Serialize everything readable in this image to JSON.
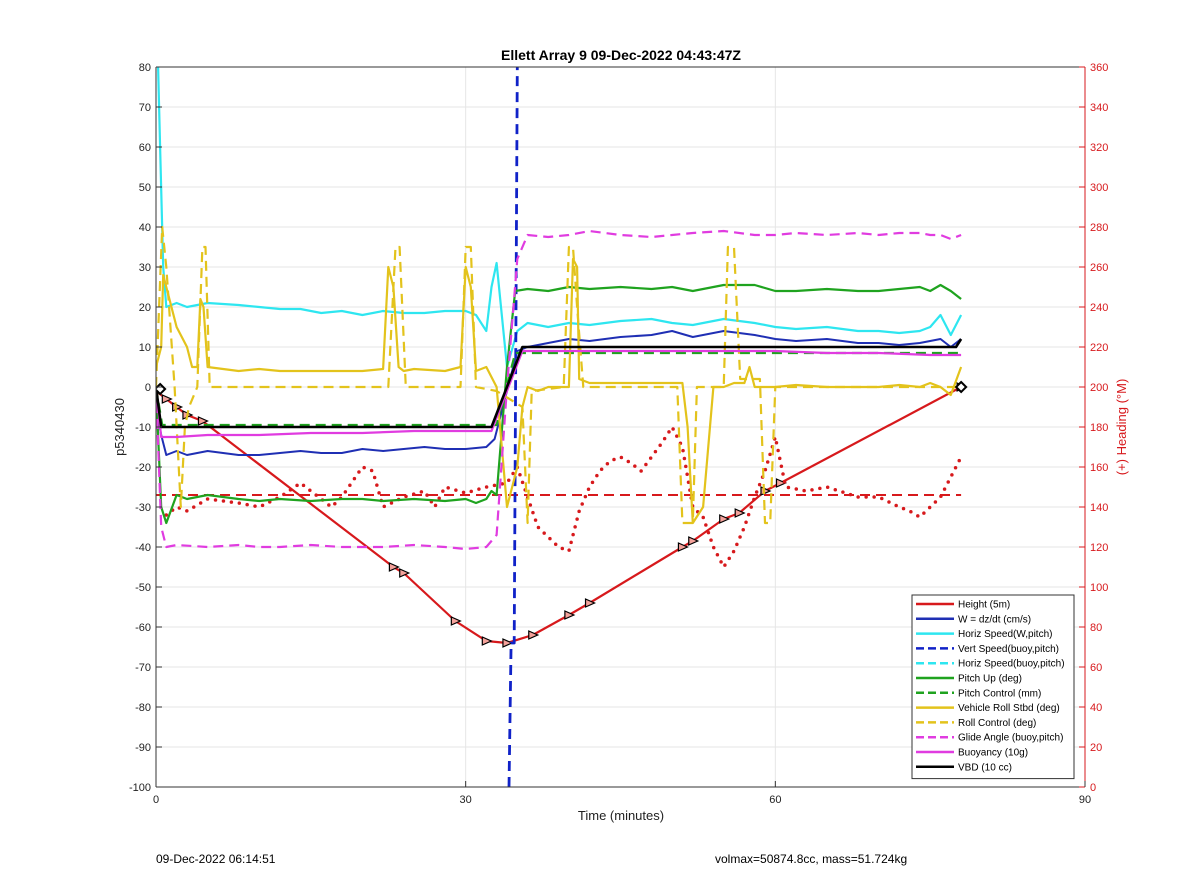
{
  "chart_data": {
    "type": "line",
    "title": "Ellett Array 9 09-Dec-2022 04:43:47Z",
    "xlabel": "Time (minutes)",
    "ylabel": "p5340430",
    "y2label": "(+) Heading (°M)",
    "xlim": [
      0,
      90
    ],
    "ylim": [
      -100,
      80
    ],
    "y2lim": [
      0,
      360
    ],
    "xticks": [
      0,
      30,
      60,
      90
    ],
    "yticks": [
      -100,
      -90,
      -80,
      -70,
      -60,
      -50,
      -40,
      -30,
      -20,
      -10,
      0,
      10,
      20,
      30,
      40,
      50,
      60,
      70,
      80
    ],
    "y2ticks": [
      0,
      20,
      40,
      60,
      80,
      100,
      120,
      140,
      160,
      180,
      200,
      220,
      240,
      260,
      280,
      300,
      320,
      340,
      360
    ],
    "grid": true,
    "legend_position": "bottom-right",
    "legend": [
      {
        "label": "Height (5m)",
        "color": "#d7191c",
        "style": "solid"
      },
      {
        "label": "W = dz/dt (cm/s)",
        "color": "#1f2fb4",
        "style": "solid"
      },
      {
        "label": "Horiz Speed(W,pitch)",
        "color": "#2ee6f0",
        "style": "solid"
      },
      {
        "label": "Vert Speed(buoy,pitch)",
        "color": "#1022c8",
        "style": "dashed"
      },
      {
        "label": "Horiz Speed(buoy,pitch)",
        "color": "#2ee6f0",
        "style": "dashed"
      },
      {
        "label": "Pitch Up (deg)",
        "color": "#1fa31f",
        "style": "solid"
      },
      {
        "label": "Pitch Control (mm)",
        "color": "#1fa31f",
        "style": "dashed"
      },
      {
        "label": "Vehicle Roll Stbd (deg)",
        "color": "#e3c31c",
        "style": "solid"
      },
      {
        "label": "Roll Control (deg)",
        "color": "#e3c31c",
        "style": "dashed"
      },
      {
        "label": "Glide Angle (buoy,pitch)",
        "color": "#e03ce0",
        "style": "dashed"
      },
      {
        "label": "Buoyancy (10g)",
        "color": "#e03ce0",
        "style": "solid"
      },
      {
        "label": "VBD (10 cc)",
        "color": "#000000",
        "style": "solid"
      }
    ],
    "series": [
      {
        "name": "Height (5m)",
        "color": "#d7191c",
        "style": "solid",
        "width": 2.2,
        "markers": "triangle",
        "x": [
          0,
          1,
          2,
          3,
          4.5,
          23,
          24,
          29,
          32,
          34,
          36.5,
          40,
          42,
          51,
          52,
          55,
          56.5,
          59,
          60.5,
          78
        ],
        "y": [
          -1,
          -3,
          -5,
          -7,
          -8.5,
          -45,
          -46.5,
          -58.5,
          -63.5,
          -64,
          -62,
          -57,
          -54,
          -40,
          -38.5,
          -33,
          -31.5,
          -26,
          -24,
          0
        ]
      },
      {
        "name": "Heading (dotted, right axis)",
        "axis": "right",
        "color": "#d7191c",
        "style": "dotted",
        "width": 3.5,
        "x": [
          1,
          2,
          3,
          5,
          8,
          10,
          12,
          14,
          15,
          17,
          18,
          20,
          21,
          22,
          24,
          26,
          27,
          28,
          30,
          32,
          34,
          35,
          36,
          37,
          38,
          39,
          40,
          41,
          42,
          43,
          44,
          45,
          46,
          47,
          48,
          49,
          50,
          51,
          52,
          53,
          54,
          55,
          56,
          57,
          58,
          59,
          60,
          61,
          63,
          65,
          68,
          70,
          72,
          73,
          74,
          75,
          76,
          77,
          78
        ],
        "y": [
          136,
          140,
          138,
          144,
          142,
          140,
          145,
          152,
          148,
          140,
          145,
          160,
          158,
          140,
          145,
          148,
          140,
          150,
          147,
          150,
          152,
          160,
          145,
          130,
          125,
          120,
          118,
          138,
          150,
          158,
          163,
          165,
          162,
          158,
          165,
          172,
          180,
          170,
          140,
          135,
          120,
          110,
          118,
          130,
          145,
          158,
          175,
          150,
          148,
          150,
          145,
          145,
          140,
          138,
          135,
          140,
          145,
          155,
          165
        ]
      },
      {
        "name": "Heading target (right axis)",
        "axis": "right",
        "color": "#d7191c",
        "style": "dashed",
        "width": 2,
        "x": [
          0,
          78
        ],
        "y": [
          146,
          146
        ]
      },
      {
        "name": "W = dz/dt (cm/s)",
        "color": "#1f2fb4",
        "style": "solid",
        "width": 2,
        "x": [
          0,
          0.5,
          1,
          2,
          3,
          5,
          8,
          10,
          12,
          14,
          16,
          18,
          20,
          22,
          24,
          26,
          28,
          30,
          32,
          32.8,
          35,
          36,
          38,
          40,
          42,
          45,
          48,
          50,
          52,
          55,
          58,
          60,
          62,
          65,
          68,
          70,
          72,
          74,
          76,
          77,
          78
        ],
        "y": [
          -5,
          -12,
          -17,
          -16,
          -17,
          -16,
          -17,
          -17,
          -16.5,
          -16,
          -16.5,
          -16.5,
          -15.5,
          -16,
          -15.5,
          -15,
          -15.5,
          -15.5,
          -15,
          -13,
          9,
          10,
          11,
          12,
          11.5,
          12.5,
          13,
          14,
          12.5,
          14,
          13,
          12,
          11.5,
          12,
          11,
          11,
          10.5,
          11,
          12,
          10,
          12
        ]
      },
      {
        "name": "Horiz Speed(W,pitch)",
        "color": "#2ee6f0",
        "style": "solid",
        "width": 2.2,
        "x": [
          0.2,
          0.4,
          0.7,
          1,
          2,
          3,
          5,
          8,
          10,
          12,
          14,
          16,
          18,
          20,
          22,
          24,
          26,
          28,
          30,
          31,
          32,
          32.5,
          33,
          34,
          35,
          36,
          38,
          40,
          42,
          45,
          48,
          50,
          52,
          55,
          58,
          60,
          62,
          65,
          68,
          70,
          72,
          74,
          75,
          76,
          77,
          78
        ],
        "y": [
          80,
          60,
          30,
          20,
          21,
          20,
          21,
          20.5,
          20,
          19.5,
          19.5,
          18.5,
          19,
          18,
          19,
          18.5,
          18.5,
          19,
          19,
          18,
          14,
          25,
          31,
          5,
          14,
          16,
          15,
          16,
          15.5,
          16.5,
          17,
          16,
          15.5,
          17,
          16,
          15,
          14.5,
          15,
          14,
          14,
          13.5,
          14,
          15,
          18,
          13,
          18
        ]
      },
      {
        "name": "Vert Speed(buoy,pitch)",
        "color": "#1022c8",
        "style": "dashed",
        "width": 2.8,
        "x": [
          34.2,
          34.4,
          34.7,
          35
        ],
        "y": [
          -100,
          -64,
          -64,
          80
        ]
      },
      {
        "name": "Pitch Up (deg)",
        "color": "#1fa31f",
        "style": "solid",
        "width": 2.2,
        "x": [
          0,
          0.5,
          1,
          2,
          3,
          5,
          8,
          10,
          12,
          15,
          18,
          20,
          22,
          25,
          28,
          30,
          31,
          32,
          32.5,
          33,
          34,
          34.8,
          36,
          38,
          40,
          42,
          45,
          48,
          50,
          52,
          55,
          58,
          60,
          62,
          65,
          68,
          70,
          72,
          74,
          75,
          76,
          77,
          78
        ],
        "y": [
          0,
          -30,
          -34,
          -27,
          -28,
          -27,
          -28,
          -28.5,
          -28,
          -28.5,
          -28,
          -28,
          -28.5,
          -28,
          -28.5,
          -28,
          -29,
          -28,
          -26,
          -27,
          5,
          24,
          24.5,
          24,
          25,
          24.5,
          25,
          24.5,
          25,
          24,
          25.5,
          25.5,
          24,
          24,
          24.5,
          24,
          24,
          24.5,
          25,
          24,
          25.5,
          24,
          22
        ]
      },
      {
        "name": "Pitch Control (mm)",
        "color": "#1fa31f",
        "style": "dashed",
        "width": 2.2,
        "x": [
          0,
          0.6,
          33,
          34.8,
          78
        ],
        "y": [
          0,
          -9.5,
          -9.5,
          8.5,
          8.5
        ]
      },
      {
        "name": "Vehicle Roll Stbd (deg)",
        "color": "#e3c31c",
        "style": "solid",
        "width": 2.2,
        "x": [
          0,
          0.5,
          0.7,
          1,
          2,
          3,
          3.5,
          4,
          4.3,
          4.6,
          5,
          8,
          10,
          12,
          15,
          18,
          20,
          22,
          22.5,
          23,
          23.5,
          24,
          25,
          28,
          29.5,
          30,
          30.5,
          31,
          32,
          33,
          34,
          35,
          35.5,
          36,
          37,
          38,
          39,
          40,
          40.4,
          40.8,
          41,
          42,
          45,
          48,
          50,
          51,
          51.5,
          52,
          53,
          54,
          55,
          56,
          57,
          57.5,
          58,
          59,
          60,
          62,
          65,
          68,
          70,
          72,
          74,
          75,
          76,
          77,
          78
        ],
        "y": [
          5,
          10,
          28,
          25,
          15,
          10,
          5,
          5,
          22,
          20,
          5,
          4,
          4.5,
          4,
          4,
          4,
          4,
          4.5,
          30,
          25,
          5,
          4,
          4.5,
          4,
          5,
          30,
          25,
          4,
          5,
          0,
          -30,
          -20,
          -5,
          0,
          -1,
          0,
          0,
          0,
          32,
          30,
          2,
          1,
          1,
          1,
          1,
          1,
          -10,
          -34,
          -30,
          0,
          0,
          1,
          1,
          5,
          0,
          0,
          0,
          0.5,
          0,
          0,
          0,
          0.5,
          0,
          1,
          0,
          -2,
          5
        ]
      },
      {
        "name": "Roll Control (deg)",
        "color": "#e3c31c",
        "style": "dashed",
        "width": 2.2,
        "x": [
          0,
          0.6,
          1,
          1.8,
          2.4,
          2.8,
          3.2,
          4,
          4.5,
          4.8,
          5.2,
          22.5,
          23.2,
          23.6,
          24.2,
          29.5,
          30,
          30.5,
          31,
          33,
          35.5,
          36,
          36.4,
          39.5,
          40,
          40.4,
          40.8,
          41.4,
          42,
          50.5,
          51,
          52,
          52.4,
          55,
          55.4,
          56,
          56.6,
          57,
          58.5,
          59,
          59.5,
          60,
          78
        ],
        "y": [
          0,
          40,
          30,
          0,
          -30,
          -10,
          -5,
          0,
          35,
          35,
          0,
          0,
          35,
          35,
          0,
          0,
          35,
          35,
          0,
          -1,
          -5,
          -34,
          -1,
          0,
          35,
          35,
          20,
          0,
          0,
          0,
          -34,
          -34,
          0,
          0,
          35,
          35,
          2,
          2,
          2,
          -34,
          -34,
          0,
          0
        ]
      },
      {
        "name": "Glide Angle (buoy,pitch)",
        "color": "#e03ce0",
        "style": "dashed",
        "width": 2.2,
        "x": [
          0,
          0.5,
          1,
          2,
          5,
          8,
          10,
          12,
          15,
          18,
          20,
          22,
          25,
          28,
          30,
          32,
          33,
          34,
          35,
          36,
          38,
          40,
          42,
          45,
          48,
          50,
          52,
          55,
          58,
          60,
          62,
          65,
          68,
          70,
          72,
          74,
          75,
          76,
          77,
          78
        ],
        "y": [
          0,
          -35,
          -40,
          -39.5,
          -40,
          -39.5,
          -40,
          -40,
          -39.5,
          -40,
          -40,
          -40,
          -39.5,
          -40,
          -40.5,
          -40,
          -37,
          0,
          32,
          38,
          37.5,
          38,
          39,
          38,
          37.5,
          38,
          38.5,
          39,
          38,
          38,
          38.5,
          38,
          38.5,
          38,
          38.5,
          38.5,
          38,
          38,
          37,
          38
        ]
      },
      {
        "name": "Buoyancy (10g)",
        "color": "#e03ce0",
        "style": "solid",
        "width": 2.2,
        "x": [
          0,
          0.5,
          2,
          5,
          10,
          15,
          20,
          25,
          30,
          32.5,
          35.5,
          40,
          45,
          50,
          55,
          60,
          65,
          70,
          75,
          78
        ],
        "y": [
          0,
          -12.5,
          -12.5,
          -12,
          -12,
          -11.5,
          -11.5,
          -11,
          -11,
          -11,
          9,
          9,
          9,
          9,
          9,
          9,
          8.5,
          8.5,
          8,
          8
        ]
      },
      {
        "name": "VBD (10 cc)",
        "color": "#000000",
        "style": "solid",
        "width": 2.6,
        "x": [
          0,
          0.5,
          2,
          32.5,
          35.5,
          77.5,
          78
        ],
        "y": [
          0,
          -10,
          -10,
          -10,
          10,
          10,
          12
        ]
      },
      {
        "name": "Target marker",
        "color": "#000000",
        "style": "marker",
        "x": [
          0.4,
          78
        ],
        "y": [
          -0.5,
          0
        ]
      }
    ]
  },
  "footer": {
    "left": "09-Dec-2022 06:14:51",
    "right": "volmax=50874.8cc, mass=51.724kg"
  }
}
